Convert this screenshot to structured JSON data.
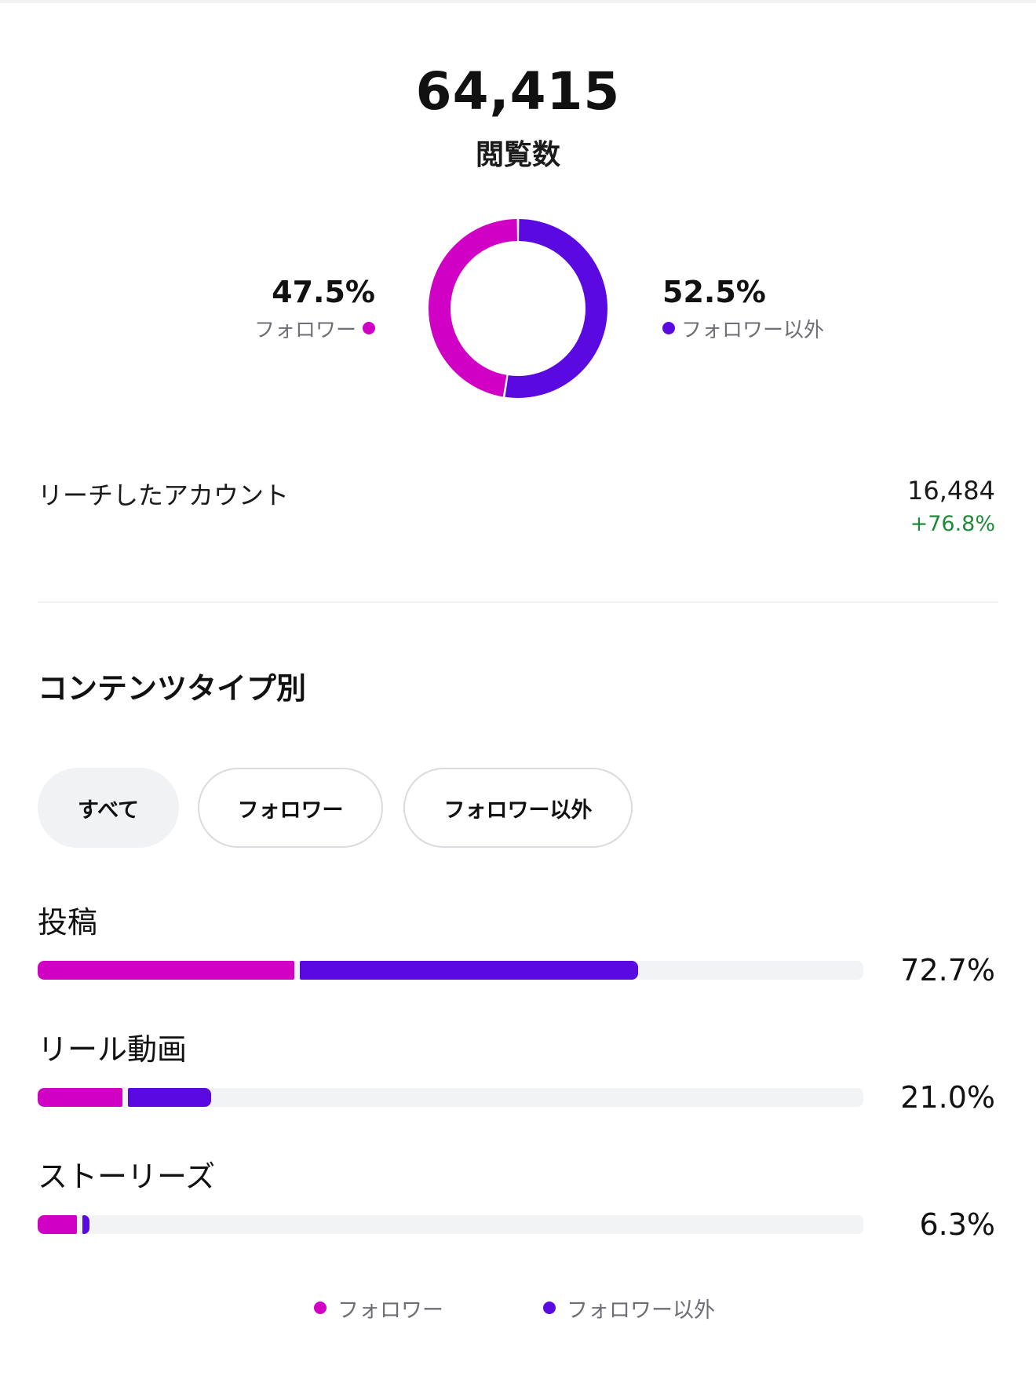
{
  "summary": {
    "views_value": "64,415",
    "views_label": "閲覧数"
  },
  "colors": {
    "followers": "#d100c5",
    "non_followers": "#5a0ae0",
    "positive_change": "#1f8a3a",
    "track": "#f2f3f5"
  },
  "donut": {
    "followers_pct_label": "47.5%",
    "followers_label": "フォロワー",
    "non_followers_pct_label": "52.5%",
    "non_followers_label": "フォロワー以外"
  },
  "reach": {
    "label": "リーチしたアカウント",
    "value": "16,484",
    "change": "+76.8%"
  },
  "content_type": {
    "title": "コンテンツタイプ別",
    "filters": [
      "すべて",
      "フォロワー",
      "フォロワー以外"
    ],
    "selected_filter": "すべて",
    "rows": [
      {
        "label": "投稿",
        "value_label": "72.7%"
      },
      {
        "label": "リール動画",
        "value_label": "21.0%"
      },
      {
        "label": "ストーリーズ",
        "value_label": "6.3%"
      }
    ]
  },
  "legend": {
    "followers": "フォロワー",
    "non_followers": "フォロワー以外"
  },
  "chart_data": [
    {
      "type": "pie",
      "categories": [
        "フォロワー",
        "フォロワー以外"
      ],
      "values": [
        47.5,
        52.5
      ]
    },
    {
      "type": "bar",
      "categories": [
        "投稿",
        "リール動画",
        "ストーリーズ"
      ],
      "series": [
        {
          "name": "フォロワー",
          "values": [
            31.4,
            10.6,
            5.1
          ]
        },
        {
          "name": "フォロワー以外",
          "values": [
            41.3,
            10.4,
            1.2
          ]
        }
      ],
      "totals": [
        72.7,
        21.0,
        6.3
      ],
      "ylim": [
        0,
        100
      ]
    }
  ]
}
